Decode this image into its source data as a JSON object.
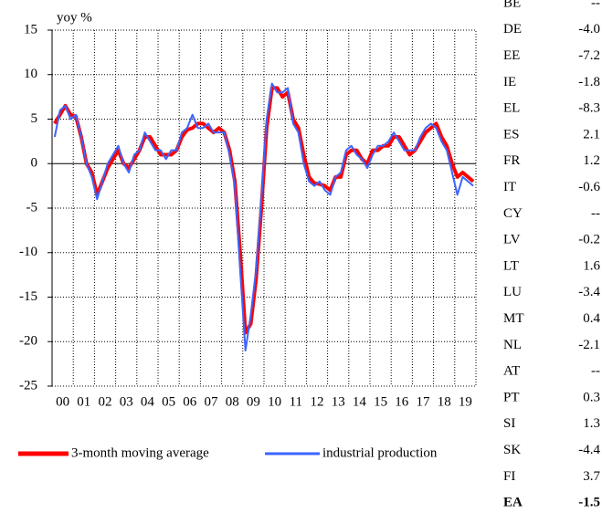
{
  "chart_data": {
    "type": "line",
    "y_label": "yoy %",
    "x": [
      2000.125,
      2000.375,
      2000.625,
      2000.875,
      2001.125,
      2001.375,
      2001.625,
      2001.875,
      2002.125,
      2002.375,
      2002.625,
      2002.875,
      2003.125,
      2003.375,
      2003.625,
      2003.875,
      2004.125,
      2004.375,
      2004.625,
      2004.875,
      2005.125,
      2005.375,
      2005.625,
      2005.875,
      2006.125,
      2006.375,
      2006.625,
      2006.875,
      2007.125,
      2007.375,
      2007.625,
      2007.875,
      2008.125,
      2008.375,
      2008.625,
      2008.875,
      2009.125,
      2009.375,
      2009.625,
      2009.875,
      2010.125,
      2010.375,
      2010.625,
      2010.875,
      2011.125,
      2011.375,
      2011.625,
      2011.875,
      2012.125,
      2012.375,
      2012.625,
      2012.875,
      2013.125,
      2013.375,
      2013.625,
      2013.875,
      2014.125,
      2014.375,
      2014.625,
      2014.875,
      2015.125,
      2015.375,
      2015.625,
      2015.875,
      2016.125,
      2016.375,
      2016.625,
      2016.875,
      2017.125,
      2017.375,
      2017.625,
      2017.875,
      2018.125,
      2018.375,
      2018.625,
      2018.875,
      2019.125,
      2019.375,
      2019.625,
      2019.875
    ],
    "series": [
      {
        "name": "3-month moving average",
        "color": "#ff0000",
        "values": [
          4.5,
          5.5,
          6.5,
          5.5,
          5.3,
          3,
          0,
          -1,
          -3.5,
          -2,
          -0.5,
          0.5,
          1.5,
          0,
          -0.5,
          0.5,
          1.5,
          3,
          3,
          2,
          1,
          1,
          1,
          1.5,
          3,
          3.8,
          4,
          4.5,
          4.5,
          4,
          3.5,
          4,
          3.5,
          1.5,
          -2,
          -10,
          -19,
          -18,
          -13,
          -5,
          4,
          8.5,
          8.5,
          7.5,
          8,
          5,
          4,
          1,
          -1.5,
          -2.2,
          -2.3,
          -2.5,
          -3,
          -1.5,
          -1.5,
          1,
          1.5,
          1.5,
          0.5,
          0,
          1.5,
          1.5,
          2,
          2,
          3,
          3,
          2,
          1,
          1.5,
          2.5,
          3.5,
          4,
          4.5,
          3,
          2,
          0,
          -1.5,
          -1,
          -1.5,
          -2
        ]
      },
      {
        "name": "industrial production",
        "color": "#3c64ff",
        "values": [
          3,
          6,
          6.5,
          5,
          5.5,
          3,
          0,
          -1.5,
          -4,
          -2,
          0,
          1,
          2,
          0,
          -1,
          1,
          1.5,
          3.5,
          2.5,
          1.5,
          1.5,
          0.5,
          1.5,
          1.5,
          3.5,
          4,
          5.5,
          4,
          4,
          4.5,
          3.5,
          3.5,
          3.5,
          1,
          -2.5,
          -12,
          -21,
          -17,
          -12,
          -4,
          5,
          9,
          8,
          8,
          8.5,
          4.5,
          3.5,
          0,
          -2,
          -2.5,
          -2,
          -3,
          -3.5,
          -1.5,
          -1,
          1.5,
          2,
          1,
          0.5,
          -0.5,
          1,
          2,
          2,
          2.5,
          3.5,
          2.5,
          1.5,
          1.5,
          1.5,
          3,
          4,
          4.5,
          4,
          2.5,
          1.5,
          -1,
          -3.5,
          -1.5,
          -2,
          -2.5
        ]
      }
    ],
    "xlim": [
      2000,
      2020
    ],
    "xticks": [
      {
        "value": 2000,
        "label": "00"
      },
      {
        "value": 2001,
        "label": "01"
      },
      {
        "value": 2002,
        "label": "02"
      },
      {
        "value": 2003,
        "label": "03"
      },
      {
        "value": 2004,
        "label": "04"
      },
      {
        "value": 2005,
        "label": "05"
      },
      {
        "value": 2006,
        "label": "06"
      },
      {
        "value": 2007,
        "label": "07"
      },
      {
        "value": 2008,
        "label": "08"
      },
      {
        "value": 2009,
        "label": "09"
      },
      {
        "value": 2010,
        "label": "10"
      },
      {
        "value": 2011,
        "label": "11"
      },
      {
        "value": 2012,
        "label": "12"
      },
      {
        "value": 2013,
        "label": "13"
      },
      {
        "value": 2014,
        "label": "14"
      },
      {
        "value": 2015,
        "label": "15"
      },
      {
        "value": 2016,
        "label": "16"
      },
      {
        "value": 2017,
        "label": "17"
      },
      {
        "value": 2018,
        "label": "18"
      },
      {
        "value": 2019,
        "label": "19"
      }
    ],
    "ylim": [
      -25,
      15
    ],
    "yticks": [
      15,
      10,
      5,
      0,
      -5,
      -10,
      -15,
      -20,
      -25
    ],
    "grid": true
  },
  "table": {
    "rows": [
      [
        "BE",
        "--"
      ],
      [
        "DE",
        "-4.0"
      ],
      [
        "EE",
        "-7.2"
      ],
      [
        "IE",
        "-1.8"
      ],
      [
        "EL",
        "-8.3"
      ],
      [
        "ES",
        "2.1"
      ],
      [
        "FR",
        "1.2"
      ],
      [
        "IT",
        "-0.6"
      ],
      [
        "CY",
        "--"
      ],
      [
        "LV",
        "-0.2"
      ],
      [
        "LT",
        "1.6"
      ],
      [
        "LU",
        "-3.4"
      ],
      [
        "MT",
        "0.4"
      ],
      [
        "NL",
        "-2.1"
      ],
      [
        "AT",
        "--"
      ],
      [
        "PT",
        "0.3"
      ],
      [
        "SI",
        "1.3"
      ],
      [
        "SK",
        "-4.4"
      ],
      [
        "FI",
        "3.7"
      ],
      [
        "EA",
        "-1.5"
      ]
    ]
  }
}
